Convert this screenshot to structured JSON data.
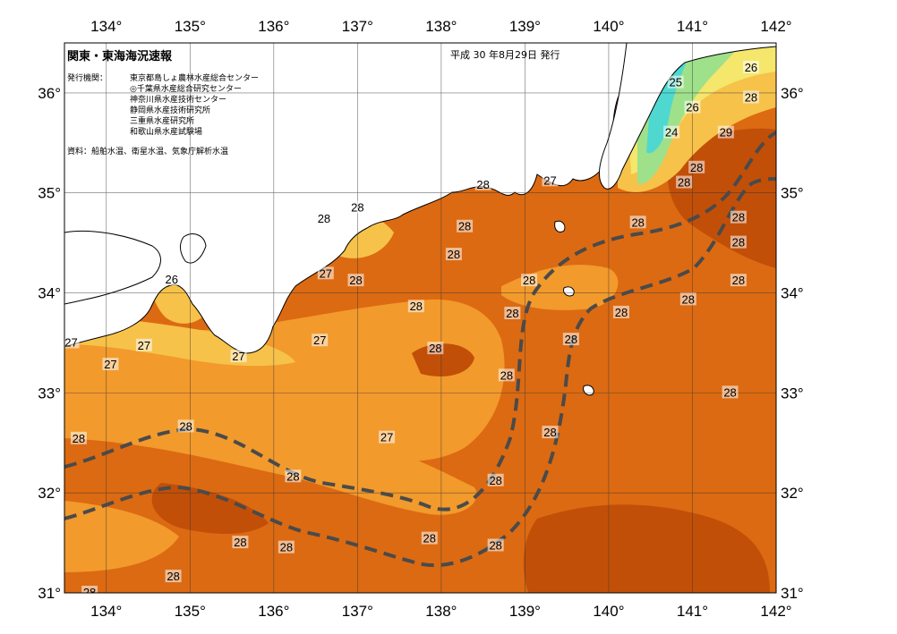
{
  "header": {
    "title": "関東・東海海況速報",
    "date": "平成 30 年8月29日 発行"
  },
  "issuers": {
    "label": "発行機関：",
    "orgs": [
      "東京都島しょ農林水産総合センター",
      "◎千葉県水産総合研究センター",
      "神奈川県水産技術センター",
      "静岡県水産技術研究所",
      "三重県水産研究所",
      "和歌山県水産試験場"
    ]
  },
  "data_source": "資料：船舶水温、衛星水温、気象庁解析水温",
  "axes": {
    "lon_labels": [
      "134°",
      "135°",
      "136°",
      "137°",
      "138°",
      "139°",
      "140°",
      "141°",
      "142°"
    ],
    "lat_labels": [
      "36°",
      "35°",
      "34°",
      "33°",
      "32°",
      "31°"
    ],
    "lon_range": [
      133.5,
      142.0
    ],
    "lat_range": [
      31.0,
      36.5
    ]
  },
  "colors": {
    "temp_29": "#c24f08",
    "temp_28": "#dc6a12",
    "temp_27": "#f29a2c",
    "temp_26": "#f7c24a",
    "temp_25": "#f5e66c",
    "temp_24": "#9fe08a",
    "temp_23": "#4fd8cf",
    "land": "#ffffff",
    "kuroshio_axis": "#4a4a4a"
  },
  "isotherm_labels": [
    {
      "text": "26",
      "lon": 141.7,
      "lat": 36.25
    },
    {
      "text": "25",
      "lon": 140.8,
      "lat": 36.1
    },
    {
      "text": "28",
      "lon": 141.7,
      "lat": 35.95
    },
    {
      "text": "26",
      "lon": 141.0,
      "lat": 35.85
    },
    {
      "text": "24",
      "lon": 140.75,
      "lat": 35.6
    },
    {
      "text": "29",
      "lon": 141.4,
      "lat": 35.6
    },
    {
      "text": "28",
      "lon": 141.05,
      "lat": 35.25
    },
    {
      "text": "28",
      "lon": 140.9,
      "lat": 35.1
    },
    {
      "text": "27",
      "lon": 139.3,
      "lat": 35.12
    },
    {
      "text": "28",
      "lon": 138.5,
      "lat": 35.08
    },
    {
      "text": "28",
      "lon": 137.0,
      "lat": 34.85
    },
    {
      "text": "28",
      "lon": 136.6,
      "lat": 34.74
    },
    {
      "text": "28",
      "lon": 141.55,
      "lat": 34.75
    },
    {
      "text": "28",
      "lon": 140.35,
      "lat": 34.7
    },
    {
      "text": "28",
      "lon": 138.28,
      "lat": 34.66
    },
    {
      "text": "28",
      "lon": 141.55,
      "lat": 34.5
    },
    {
      "text": "28",
      "lon": 138.15,
      "lat": 34.38
    },
    {
      "text": "27",
      "lon": 136.62,
      "lat": 34.19
    },
    {
      "text": "28",
      "lon": 136.98,
      "lat": 34.12
    },
    {
      "text": "26",
      "lon": 134.78,
      "lat": 34.13
    },
    {
      "text": "28",
      "lon": 139.05,
      "lat": 34.12
    },
    {
      "text": "28",
      "lon": 141.55,
      "lat": 34.12
    },
    {
      "text": "28",
      "lon": 140.95,
      "lat": 33.93
    },
    {
      "text": "28",
      "lon": 137.7,
      "lat": 33.86
    },
    {
      "text": "28",
      "lon": 140.15,
      "lat": 33.8
    },
    {
      "text": "28",
      "lon": 138.85,
      "lat": 33.79
    },
    {
      "text": "27",
      "lon": 133.58,
      "lat": 33.5
    },
    {
      "text": "27",
      "lon": 134.45,
      "lat": 33.47
    },
    {
      "text": "27",
      "lon": 136.55,
      "lat": 33.52
    },
    {
      "text": "28",
      "lon": 139.55,
      "lat": 33.53
    },
    {
      "text": "28",
      "lon": 137.93,
      "lat": 33.44
    },
    {
      "text": "27",
      "lon": 135.58,
      "lat": 33.36
    },
    {
      "text": "27",
      "lon": 134.05,
      "lat": 33.28
    },
    {
      "text": "28",
      "lon": 138.78,
      "lat": 33.17
    },
    {
      "text": "28",
      "lon": 141.45,
      "lat": 33.0
    },
    {
      "text": "28",
      "lon": 139.3,
      "lat": 32.6
    },
    {
      "text": "28",
      "lon": 134.95,
      "lat": 32.66
    },
    {
      "text": "28",
      "lon": 133.67,
      "lat": 32.54
    },
    {
      "text": "27",
      "lon": 137.35,
      "lat": 32.55
    },
    {
      "text": "28",
      "lon": 136.23,
      "lat": 32.16
    },
    {
      "text": "28",
      "lon": 138.65,
      "lat": 32.12
    },
    {
      "text": "28",
      "lon": 135.6,
      "lat": 31.5
    },
    {
      "text": "28",
      "lon": 137.86,
      "lat": 31.54
    },
    {
      "text": "28",
      "lon": 138.65,
      "lat": 31.47
    },
    {
      "text": "28",
      "lon": 136.15,
      "lat": 31.45
    },
    {
      "text": "28",
      "lon": 134.8,
      "lat": 31.16
    },
    {
      "text": "28",
      "lon": 133.8,
      "lat": 31.0
    }
  ]
}
